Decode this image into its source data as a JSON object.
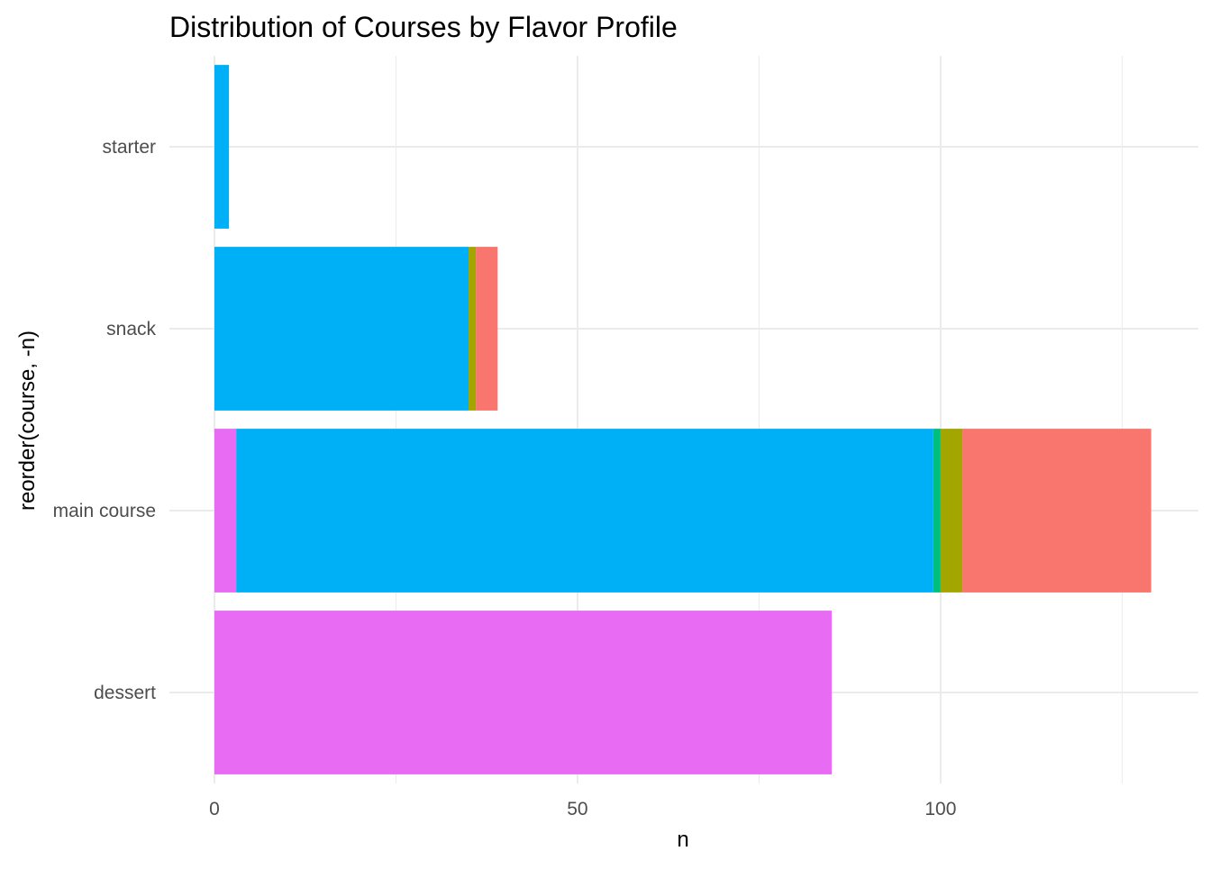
{
  "chart_data": {
    "type": "bar",
    "orientation": "horizontal",
    "stacked": true,
    "title": "Distribution of Courses by Flavor Profile",
    "xlabel": "n",
    "ylabel": "reorder(course, -n)",
    "categories": [
      "starter",
      "snack",
      "main course",
      "dessert"
    ],
    "xlim": [
      -6.2,
      135.5
    ],
    "xticks": [
      0,
      50,
      100
    ],
    "grid": true,
    "legend": "none",
    "series": [
      {
        "color": "#E76BF3",
        "values": [
          0,
          0,
          3,
          85
        ]
      },
      {
        "color": "#00B0F6",
        "values": [
          2,
          35,
          96,
          0
        ]
      },
      {
        "color": "#00BF7D",
        "values": [
          0,
          0,
          1,
          0
        ]
      },
      {
        "color": "#A3A500",
        "values": [
          0,
          1,
          3,
          0
        ]
      },
      {
        "color": "#F8766D",
        "values": [
          0,
          3,
          26,
          0
        ]
      }
    ]
  }
}
